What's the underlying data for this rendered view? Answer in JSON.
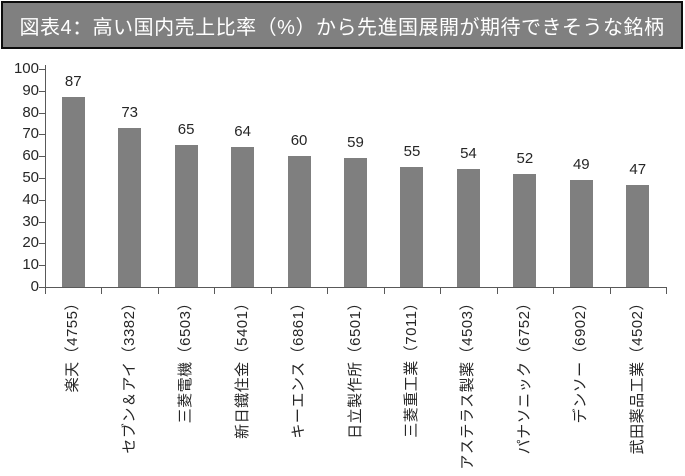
{
  "title_bar": {
    "bg_color": "#808080",
    "border_color": "#0d0d0d",
    "text_color": "#ffffff"
  },
  "chart_data": {
    "type": "bar",
    "title": "図表4：高い国内売上比率（%）から先進国展開が期待できそうな銘柄",
    "categories": [
      "楽天（4755）",
      "セブン＆アイ（3382）",
      "三菱電機（6503）",
      "新日鐵住金（5401）",
      "キーエンス（6861）",
      "日立製作所（6501）",
      "三菱重工業（7011）",
      "アステラス製薬（4503）",
      "パナソニック（6752）",
      "デンソー（6902）",
      "武田薬品工業（4502）"
    ],
    "values": [
      87,
      73,
      65,
      64,
      60,
      59,
      55,
      54,
      52,
      49,
      47
    ],
    "ylim": [
      0,
      100
    ],
    "ytick_step": 10,
    "ytick_labels": [
      "0",
      "10",
      "20",
      "30",
      "40",
      "50",
      "60",
      "70",
      "80",
      "90",
      "100"
    ],
    "xlabel": "",
    "ylabel": "",
    "grid": false,
    "legend": false,
    "data_labels": true,
    "bar_color": "#7f7f7f",
    "axis_color": "#595959",
    "label_color": "#262626"
  }
}
